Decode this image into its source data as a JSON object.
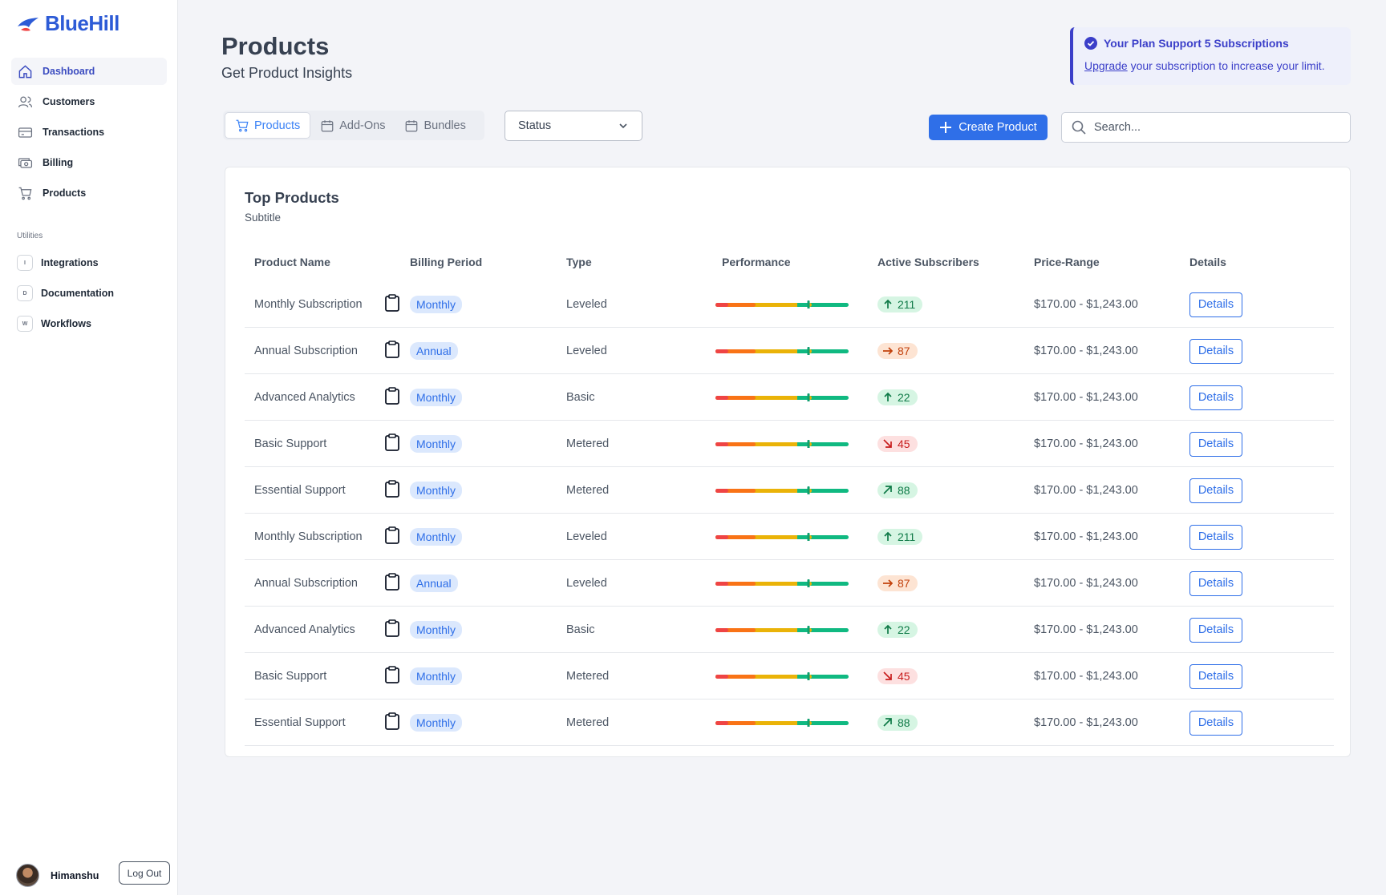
{
  "brand": {
    "name": "BlueHill"
  },
  "sidebar": {
    "items": [
      {
        "label": "Dashboard",
        "icon": "home-icon",
        "active": true
      },
      {
        "label": "Customers",
        "icon": "users-icon"
      },
      {
        "label": "Transactions",
        "icon": "card-icon"
      },
      {
        "label": "Billing",
        "icon": "billing-icon"
      },
      {
        "label": "Products",
        "icon": "cart-icon"
      }
    ],
    "utilities_label": "Utilities",
    "utilities": [
      {
        "letter": "I",
        "label": "Integrations"
      },
      {
        "letter": "D",
        "label": "Documentation"
      },
      {
        "letter": "W",
        "label": "Workflows"
      }
    ],
    "user_name": "Himanshu",
    "logout_label": "Log Out"
  },
  "header": {
    "title": "Products",
    "subtitle": "Get Product Insights"
  },
  "plan": {
    "title": "Your Plan Support 5 Subscriptions",
    "link": "Upgrade",
    "text": " your subscription to increase your limit."
  },
  "tabs": [
    {
      "label": "Products",
      "icon": "cart-icon",
      "active": true
    },
    {
      "label": "Add-Ons",
      "icon": "calendar-icon"
    },
    {
      "label": "Bundles",
      "icon": "calendar-icon"
    }
  ],
  "status_select": {
    "value": "Status"
  },
  "create_button": {
    "label": "Create Product"
  },
  "search": {
    "placeholder": "Search..."
  },
  "table": {
    "title": "Top Products",
    "subtitle": "Subtitle",
    "columns": [
      "Product Name",
      "Billing Period",
      "Type",
      "Performance",
      "Active Subscribers",
      "Price-Range",
      "Details"
    ],
    "rows": [
      {
        "name": "Monthly Subscription",
        "period": "Monthly",
        "type": "Leveled",
        "subscribers": "211",
        "trend": "up",
        "price": "$170.00 - $1,243.00",
        "details": "Details"
      },
      {
        "name": "Annual Subscription",
        "period": "Annual",
        "type": "Leveled",
        "subscribers": "87",
        "trend": "right",
        "price": "$170.00 - $1,243.00",
        "details": "Details"
      },
      {
        "name": "Advanced Analytics",
        "period": "Monthly",
        "type": "Basic",
        "subscribers": "22",
        "trend": "up",
        "price": "$170.00 - $1,243.00",
        "details": "Details"
      },
      {
        "name": "Basic Support",
        "period": "Monthly",
        "type": "Metered",
        "subscribers": "45",
        "trend": "down-right",
        "price": "$170.00 - $1,243.00",
        "details": "Details"
      },
      {
        "name": "Essential Support",
        "period": "Monthly",
        "type": "Metered",
        "subscribers": "88",
        "trend": "up-right",
        "price": "$170.00 - $1,243.00",
        "details": "Details"
      },
      {
        "name": "Monthly Subscription",
        "period": "Monthly",
        "type": "Leveled",
        "subscribers": "211",
        "trend": "up",
        "price": "$170.00 - $1,243.00",
        "details": "Details"
      },
      {
        "name": "Annual Subscription",
        "period": "Annual",
        "type": "Leveled",
        "subscribers": "87",
        "trend": "right",
        "price": "$170.00 - $1,243.00",
        "details": "Details"
      },
      {
        "name": "Advanced Analytics",
        "period": "Monthly",
        "type": "Basic",
        "subscribers": "22",
        "trend": "up",
        "price": "$170.00 - $1,243.00",
        "details": "Details"
      },
      {
        "name": "Basic Support",
        "period": "Monthly",
        "type": "Metered",
        "subscribers": "45",
        "trend": "down-right",
        "price": "$170.00 - $1,243.00",
        "details": "Details"
      },
      {
        "name": "Essential Support",
        "period": "Monthly",
        "type": "Metered",
        "subscribers": "88",
        "trend": "up-right",
        "price": "$170.00 - $1,243.00",
        "details": "Details"
      }
    ]
  },
  "colors": {
    "brand": "#2d5bd6",
    "accent": "#2f6fe8",
    "plan": "#3b3fc9",
    "perf_red": "#ef4444",
    "perf_orange": "#f97316",
    "perf_yellow": "#eab308",
    "perf_green": "#10b981"
  }
}
